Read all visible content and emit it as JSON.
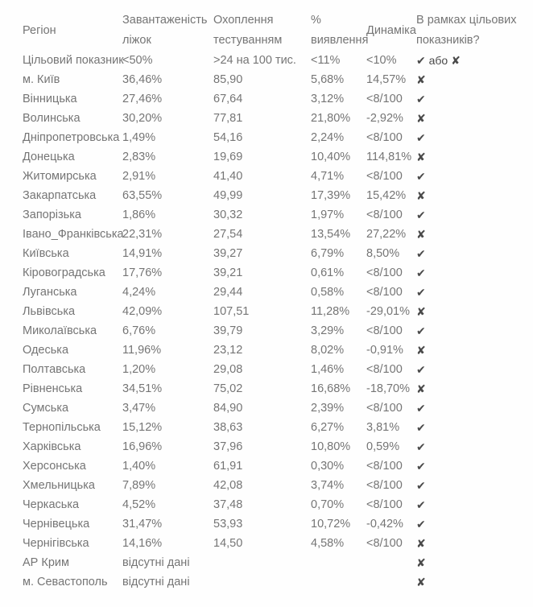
{
  "colors": {
    "background": "#fefefe",
    "text": "#757575",
    "marks": "#4a4a4a"
  },
  "table": {
    "headers": [
      {
        "key": "region",
        "line1": "Регіон"
      },
      {
        "key": "beds",
        "line1": "Завантаженість",
        "line2": "ліжок"
      },
      {
        "key": "coverage",
        "line1": "Охоплення",
        "line2": "тестуванням"
      },
      {
        "key": "detection",
        "line1": "%",
        "line2": "виявлення"
      },
      {
        "key": "dynamics",
        "line1": "Динаміка"
      },
      {
        "key": "status",
        "line1": "В рамках цільових",
        "line2": "показників?"
      }
    ],
    "target": {
      "label": "Цільовий показник",
      "beds": "<50%",
      "coverage": ">24 на 100 тис.",
      "detection": "<11%",
      "dynamics": "<10%",
      "status": "✔ або ✘"
    },
    "rows": [
      {
        "region": "м. Київ",
        "beds": "36,46%",
        "coverage": "85,90",
        "detection": "5,68%",
        "dynamics": "14,57%",
        "status": "✘"
      },
      {
        "region": "Вінницька",
        "beds": "27,46%",
        "coverage": "67,64",
        "detection": "3,12%",
        "dynamics": "<8/100",
        "status": "✔"
      },
      {
        "region": "Волинська",
        "beds": "30,20%",
        "coverage": "77,81",
        "detection": "21,80%",
        "dynamics": "-2,92%",
        "status": "✘"
      },
      {
        "region": "Дніпропетровська",
        "beds": "1,49%",
        "coverage": "54,16",
        "detection": "2,24%",
        "dynamics": "<8/100",
        "status": "✔"
      },
      {
        "region": "Донецька",
        "beds": "2,83%",
        "coverage": "19,69",
        "detection": "10,40%",
        "dynamics": "114,81%",
        "status": "✘"
      },
      {
        "region": "Житомирська",
        "beds": "2,91%",
        "coverage": "41,40",
        "detection": "4,71%",
        "dynamics": "<8/100",
        "status": "✔"
      },
      {
        "region": "Закарпатська",
        "beds": "63,55%",
        "coverage": "49,99",
        "detection": "17,39%",
        "dynamics": "15,42%",
        "status": "✘"
      },
      {
        "region": "Запорізька",
        "beds": "1,86%",
        "coverage": "30,32",
        "detection": "1,97%",
        "dynamics": "<8/100",
        "status": "✔"
      },
      {
        "region": "Івано_Франківська",
        "beds": "22,31%",
        "coverage": "27,54",
        "detection": "13,54%",
        "dynamics": "27,22%",
        "status": "✘"
      },
      {
        "region": "Київська",
        "beds": "14,91%",
        "coverage": "39,27",
        "detection": "6,79%",
        "dynamics": "8,50%",
        "status": "✔"
      },
      {
        "region": "Кіровоградська",
        "beds": "17,76%",
        "coverage": "39,21",
        "detection": "0,61%",
        "dynamics": "<8/100",
        "status": "✔"
      },
      {
        "region": "Луганська",
        "beds": "4,24%",
        "coverage": "29,44",
        "detection": "0,58%",
        "dynamics": "<8/100",
        "status": "✔"
      },
      {
        "region": "Львівська",
        "beds": "42,09%",
        "coverage": "107,51",
        "detection": "11,28%",
        "dynamics": "-29,01%",
        "status": "✘"
      },
      {
        "region": "Миколаївська",
        "beds": "6,76%",
        "coverage": "39,79",
        "detection": "3,29%",
        "dynamics": "<8/100",
        "status": "✔"
      },
      {
        "region": "Одеська",
        "beds": "11,96%",
        "coverage": "23,12",
        "detection": "8,02%",
        "dynamics": "-0,91%",
        "status": "✘"
      },
      {
        "region": "Полтавська",
        "beds": "1,20%",
        "coverage": "29,08",
        "detection": "1,46%",
        "dynamics": "<8/100",
        "status": "✔"
      },
      {
        "region": "Рівненська",
        "beds": "34,51%",
        "coverage": "75,02",
        "detection": "16,68%",
        "dynamics": "-18,70%",
        "status": "✘"
      },
      {
        "region": "Сумська",
        "beds": "3,47%",
        "coverage": "84,90",
        "detection": "2,39%",
        "dynamics": "<8/100",
        "status": "✔"
      },
      {
        "region": "Тернопільська",
        "beds": "15,12%",
        "coverage": "38,63",
        "detection": "6,27%",
        "dynamics": "3,81%",
        "status": "✔"
      },
      {
        "region": "Харківська",
        "beds": "16,96%",
        "coverage": "37,96",
        "detection": "10,80%",
        "dynamics": "0,59%",
        "status": "✔"
      },
      {
        "region": "Херсонська",
        "beds": "1,40%",
        "coverage": "61,91",
        "detection": "0,30%",
        "dynamics": "<8/100",
        "status": "✔"
      },
      {
        "region": "Хмельницька",
        "beds": "7,89%",
        "coverage": "42,08",
        "detection": "3,74%",
        "dynamics": "<8/100",
        "status": "✔"
      },
      {
        "region": "Черкаська",
        "beds": "4,52%",
        "coverage": "37,48",
        "detection": "0,70%",
        "dynamics": "<8/100",
        "status": "✔"
      },
      {
        "region": "Чернівецька",
        "beds": "31,47%",
        "coverage": "53,93",
        "detection": "10,72%",
        "dynamics": "-0,42%",
        "status": "✔"
      },
      {
        "region": "Чернігівська",
        "beds": "14,16%",
        "coverage": "14,50",
        "detection": "4,58%",
        "dynamics": "<8/100",
        "status": "✘"
      },
      {
        "region": "АР Крим",
        "beds": "відсутні дані",
        "coverage": "",
        "detection": "",
        "dynamics": "",
        "status": "✘"
      },
      {
        "region": "м. Севастополь",
        "beds": "відсутні дані",
        "coverage": "",
        "detection": "",
        "dynamics": "",
        "status": "✘"
      }
    ]
  }
}
